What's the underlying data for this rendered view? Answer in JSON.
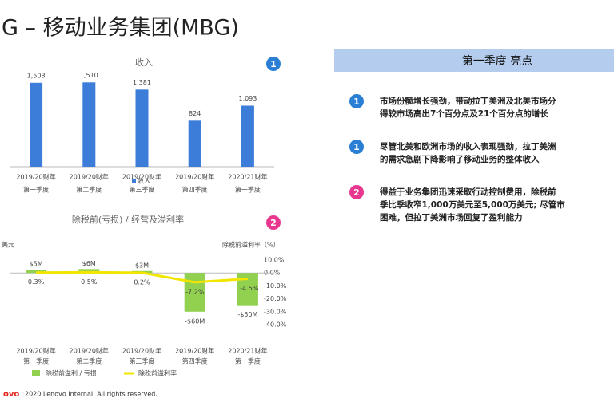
{
  "title": "G – 移动业务集团(MBG)",
  "chart_data": [
    {
      "type": "bar",
      "title": "收入",
      "categories": [
        [
          "2019/20财年",
          "第一季度"
        ],
        [
          "2019/20财年",
          "第二季度"
        ],
        [
          "2019/20财年",
          "第三季度"
        ],
        [
          "2019/20财年",
          "第四季度"
        ],
        [
          "2020/21财年",
          "第一季度"
        ]
      ],
      "series": [
        {
          "name": "收入",
          "color": "#3b7dd8",
          "values": [
            1503,
            1510,
            1381,
            824,
            1093
          ],
          "value_labels": [
            "1,503",
            "1,510",
            "1,381",
            "824",
            "1,093"
          ]
        }
      ],
      "ylim": [
        0,
        1600
      ],
      "badge": "1"
    },
    {
      "type": "combo",
      "title": "除税前(亏损) / 经营及溢利率",
      "y_label": "美元",
      "y2_label": "除税前溢利率（%）",
      "categories": [
        [
          "2019/20财年",
          "第一季度"
        ],
        [
          "2019/20财年",
          "第二季度"
        ],
        [
          "2019/20财年",
          "第三季度"
        ],
        [
          "2019/20财年",
          "第四季度"
        ],
        [
          "2020/21财年",
          "第一季度"
        ]
      ],
      "series": [
        {
          "name": "除税前溢利 / 亏损",
          "color": "#92d050",
          "type": "bar",
          "values": [
            5,
            6,
            3,
            -60,
            -50
          ],
          "value_labels": [
            "$5M",
            "$6M",
            "$3M",
            "-$60M",
            "-$50M"
          ]
        },
        {
          "name": "除税前溢利率",
          "color": "#f2e600",
          "type": "line",
          "axis": "y2",
          "values": [
            0.3,
            0.5,
            0.2,
            -7.2,
            -4.5
          ],
          "value_labels": [
            "0.3%",
            "0.5%",
            "0.2%",
            "-7.2%",
            "-4.5%"
          ]
        }
      ],
      "ylim": [
        -80,
        20
      ],
      "y2lim": [
        -40,
        10
      ],
      "y2ticks": [
        {
          "value": 10,
          "label": "10.0%"
        },
        {
          "value": 0,
          "label": "0.0%"
        },
        {
          "value": -10,
          "label": "-10.0%"
        },
        {
          "value": -20,
          "label": "-20.0%"
        },
        {
          "value": -30,
          "label": "-30.0%"
        },
        {
          "value": -40,
          "label": "-40.0%"
        }
      ],
      "badge": "2"
    }
  ],
  "highlights": {
    "title": "第一季度 亮点",
    "items": [
      {
        "badge": "1",
        "lines": [
          "市场份额增长强劲，带动拉丁美洲及北美市场分",
          "得较市场高出7个百分点及21个百分点的增长"
        ]
      },
      {
        "badge": "1",
        "lines": [
          "尽管北美和欧洲市场的收入表现强劲，拉丁美洲",
          "的需求急剧下降影响了移动业务的整体收入"
        ]
      },
      {
        "badge": "2",
        "lines": [
          "得益于业务集团迅速采取行动控制费用，除税前",
          "季比季收窄1,000万美元至5,000万美元; 尽管市",
          "困难，但拉丁美洲市场回复了盈利能力"
        ]
      }
    ]
  },
  "footer": {
    "logo": "ovo",
    "text": "2020 Lenovo Internal. All rights reserved."
  }
}
